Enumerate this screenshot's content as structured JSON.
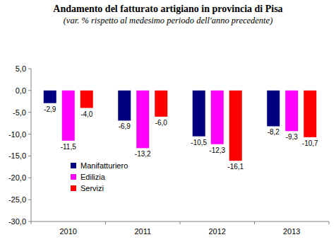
{
  "chart_data": {
    "type": "bar",
    "title": "Andamento del fatturato artigiano in provincia di Pisa",
    "subtitle": "(var. % rispetto al medesimo periodo dell'anno precedente)",
    "categories": [
      "2010",
      "2011",
      "2012",
      "2013"
    ],
    "series": [
      {
        "name": "Manifatturiero",
        "color": "#000080",
        "values": [
          -2.9,
          -6.9,
          -10.5,
          -8.2
        ],
        "value_labels": [
          "-2,9",
          "-6,9",
          "-10,5",
          "-8,2"
        ]
      },
      {
        "name": "Edilizia",
        "color": "#ff00ff",
        "values": [
          -11.5,
          -13.2,
          -12.3,
          -9.3
        ],
        "value_labels": [
          "-11,5",
          "-13,2",
          "-12,3",
          "-9,3"
        ]
      },
      {
        "name": "Servizi",
        "color": "#ff0000",
        "values": [
          -4.0,
          -6.0,
          -16.1,
          -10.7
        ],
        "value_labels": [
          "-4,0",
          "-6,0",
          "-16,1",
          "-10,7"
        ]
      }
    ],
    "ylim": [
      -30,
      5
    ],
    "yticks": [
      {
        "value": 5,
        "label": "5,0"
      },
      {
        "value": 0,
        "label": "0,0"
      },
      {
        "value": -5,
        "label": "-5,0"
      },
      {
        "value": -10,
        "label": "-10,0"
      },
      {
        "value": -15,
        "label": "-15,0"
      },
      {
        "value": -20,
        "label": "-20,0"
      },
      {
        "value": -25,
        "label": "-25,0"
      },
      {
        "value": -30,
        "label": "-30,0"
      }
    ],
    "grid": false,
    "legend": "lower left",
    "data_labels": true
  }
}
